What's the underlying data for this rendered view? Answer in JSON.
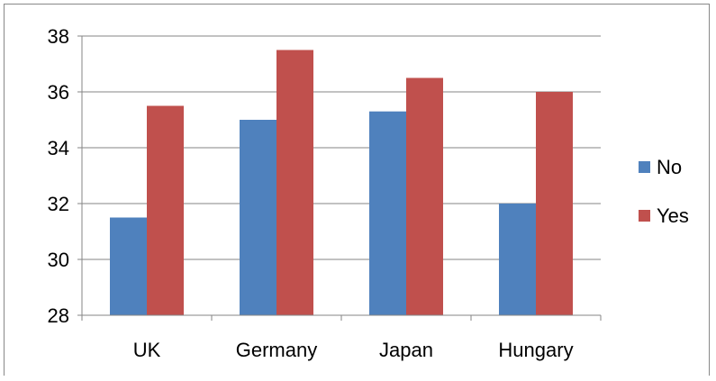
{
  "chart_data": {
    "type": "bar",
    "title": "",
    "xlabel": "",
    "ylabel": "",
    "categories": [
      "UK",
      "Germany",
      "Japan",
      "Hungary"
    ],
    "series": [
      {
        "name": "No",
        "color": "#4f81bd",
        "values": [
          31.5,
          35.0,
          35.3,
          32.0
        ]
      },
      {
        "name": "Yes",
        "color": "#c0504d",
        "values": [
          35.5,
          37.5,
          36.5,
          36.0
        ]
      }
    ],
    "ylim": [
      28,
      38
    ],
    "yticks": [
      "28",
      "30",
      "32",
      "34",
      "36",
      "38"
    ],
    "grid": true,
    "legend_position": "right"
  }
}
